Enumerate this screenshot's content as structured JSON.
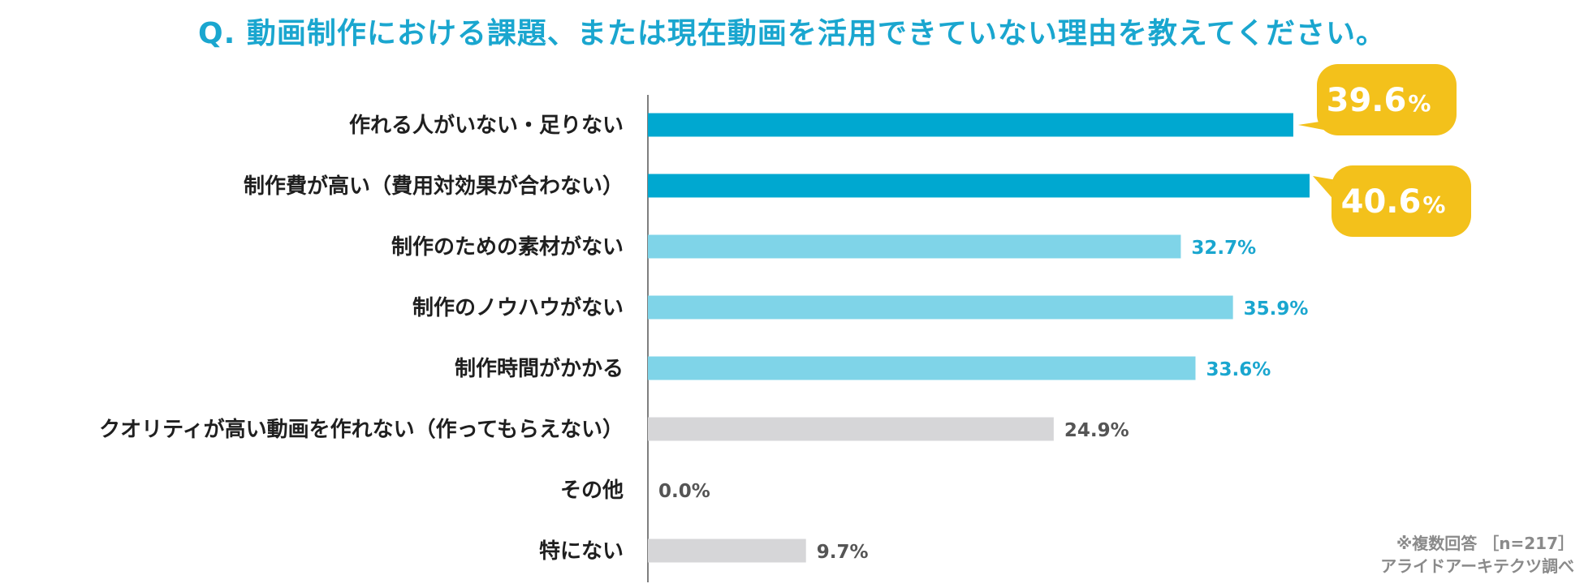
{
  "title": "Q. 動画制作における課題、または現在動画を活用できていない理由を教えてください。",
  "notes": {
    "multiple_answer": "※複数回答 ［n=217］",
    "source": "アライドアーキテクツ調べ"
  },
  "colors": {
    "title": "#1aa6cf",
    "highlight_bar": "#00a8d0",
    "mid_bar": "#7fd4e8",
    "low_bar": "#d6d6d8",
    "callout": "#f3c11b",
    "mid_label": "#1aa6cf",
    "low_label": "#555555"
  },
  "chart_data": {
    "type": "bar",
    "orientation": "horizontal",
    "unit": "%",
    "categories": [
      "作れる人がいない・足りない",
      "制作費が高い（費用対効果が合わない）",
      "制作のための素材がない",
      "制作のノウハウがない",
      "制作時間がかかる",
      "クオリティが高い動画を作れない（作ってもらえない）",
      "その他",
      "特にない"
    ],
    "values": [
      39.6,
      40.6,
      32.7,
      35.9,
      33.6,
      24.9,
      0.0,
      9.7
    ],
    "value_labels": [
      "39.6",
      "40.6",
      "32.7%",
      "35.9%",
      "33.6%",
      "24.9%",
      "0.0%",
      "9.7%"
    ],
    "callout_suffix": "%",
    "styles": [
      "highlight",
      "highlight",
      "mid",
      "mid",
      "mid",
      "low",
      "low",
      "low"
    ],
    "xlim": [
      0,
      40.6
    ],
    "grid": false,
    "legend": "none"
  }
}
